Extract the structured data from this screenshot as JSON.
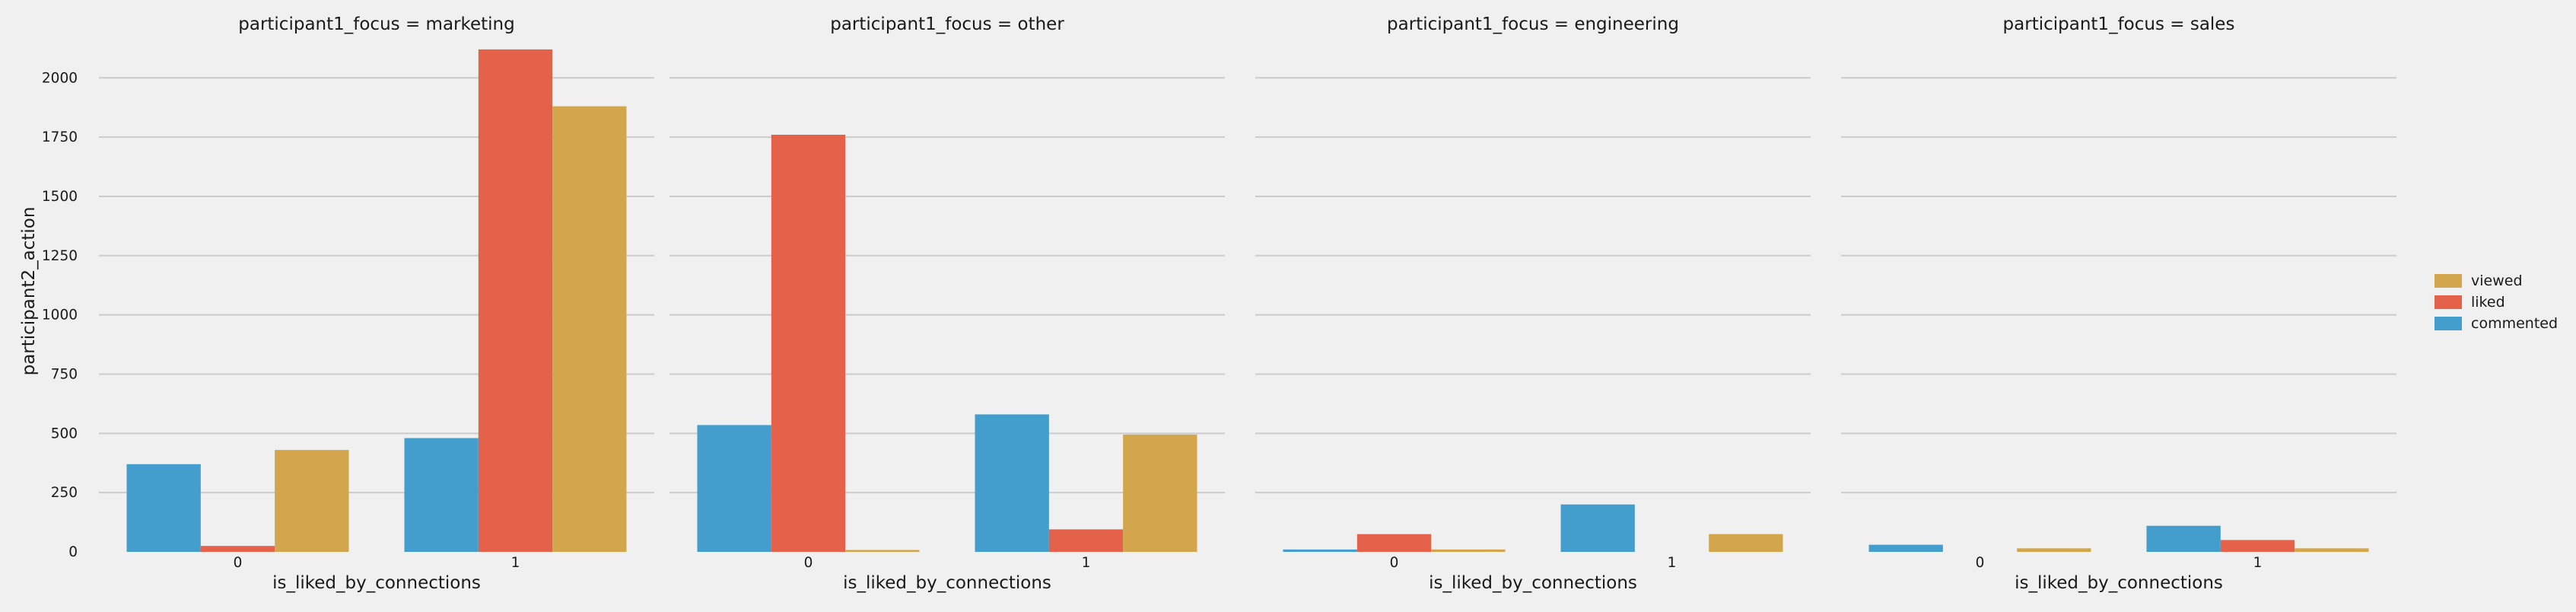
{
  "chart_data": {
    "type": "bar",
    "ylabel": "participant2_action",
    "xlabel": "is_liked_by_connections",
    "ylim": [
      0,
      2200
    ],
    "yticks": [
      0,
      250,
      500,
      750,
      1000,
      1250,
      1500,
      1750,
      2000
    ],
    "categories": [
      "0",
      "1"
    ],
    "grid": true,
    "legend_placement": "right",
    "series_order": [
      "commented",
      "liked",
      "viewed"
    ],
    "legend_order": [
      "viewed",
      "liked",
      "commented"
    ],
    "colors": {
      "commented": "#439dcd",
      "liked": "#e5624a",
      "viewed": "#d3a64d"
    },
    "panels": [
      {
        "title": "participant1_focus = marketing",
        "series": [
          {
            "name": "commented",
            "values": [
              370,
              480
            ]
          },
          {
            "name": "liked",
            "values": [
              25,
              2120
            ]
          },
          {
            "name": "viewed",
            "values": [
              430,
              1880
            ]
          }
        ]
      },
      {
        "title": "participant1_focus = other",
        "series": [
          {
            "name": "commented",
            "values": [
              535,
              580
            ]
          },
          {
            "name": "liked",
            "values": [
              1760,
              95
            ]
          },
          {
            "name": "viewed",
            "values": [
              8,
              495
            ]
          }
        ]
      },
      {
        "title": "participant1_focus = engineering",
        "series": [
          {
            "name": "commented",
            "values": [
              10,
              200
            ]
          },
          {
            "name": "liked",
            "values": [
              75,
              0
            ]
          },
          {
            "name": "viewed",
            "values": [
              10,
              75
            ]
          }
        ]
      },
      {
        "title": "participant1_focus = sales",
        "series": [
          {
            "name": "commented",
            "values": [
              30,
              110
            ]
          },
          {
            "name": "liked",
            "values": [
              0,
              50
            ]
          },
          {
            "name": "viewed",
            "values": [
              15,
              15
            ]
          }
        ]
      }
    ]
  }
}
